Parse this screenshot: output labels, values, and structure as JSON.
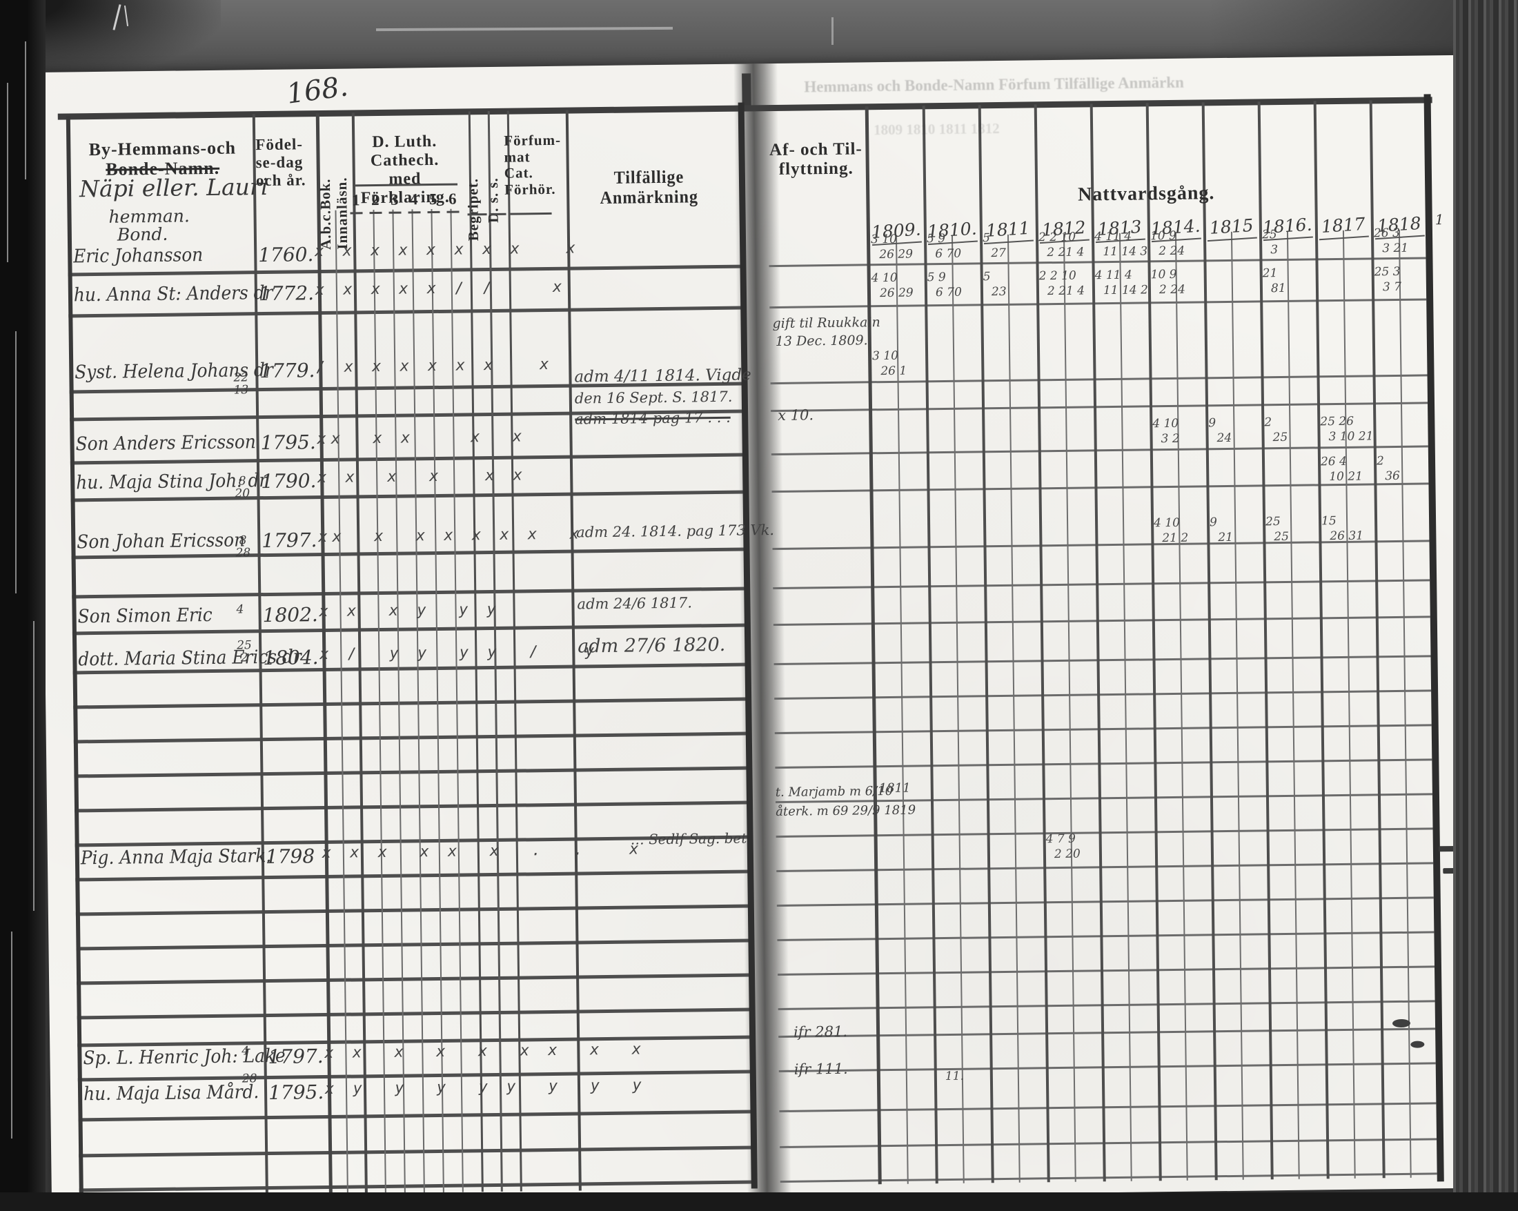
{
  "page_number": "168.",
  "headers": {
    "name_l1": "By-Hemmans-och",
    "name_l2": "Bonde-Namn.",
    "birth_l1": "Födel-",
    "birth_l2": "se-dag",
    "birth_l3": "och år.",
    "abc_l1": "A.b.c.Bok.",
    "abc_l2": "Innanläsn.",
    "cathech_l1": "D. Luth. Cathech.",
    "cathech_l2": "med Förklaring.",
    "cathech_cols": [
      "1",
      "2",
      "3",
      "4",
      "5",
      "6"
    ],
    "begriper": "Begripet.",
    "dss": "D. s. s.",
    "forsummat_l1": "Förfum-",
    "forsummat_l2": "mat Cat.",
    "forsummat_l3": "Förhör.",
    "anmarkningar": "Tilfällige Anmärkning",
    "flytt_l1": "Af- och Til-",
    "flytt_l2": "flyttning.",
    "nattvard": "Nattvardsgång.",
    "years": [
      "1809.",
      "1810.",
      "1811",
      "1812",
      "1813",
      "1814.",
      "1815",
      "1816.",
      "1817",
      "1818"
    ],
    "extra_col": "1"
  },
  "farm": {
    "line1": "Näpi eller. Lauri",
    "line2": "hemman.",
    "line3": "Bond."
  },
  "rows": [
    {
      "name": "Eric Johansson",
      "day_top": "",
      "day_bot": "",
      "year": "1760.",
      "marks": "x x x x x x x x   x"
    },
    {
      "name": "hu. Anna St: Anders dr",
      "day_top": "",
      "day_bot": "",
      "year": "1772.",
      "marks": "x x x x x / /    x"
    },
    {
      "name": "Syst. Helena Johans dr",
      "day_top": "22",
      "day_bot": "13",
      "year": "1779.",
      "marks": "/ x x x x x x   x"
    },
    {
      "name": "Son Anders Ericsson",
      "day_top": "",
      "day_bot": "",
      "year": "1795.",
      "marks": "xx  x x    x  x"
    },
    {
      "name": "hu. Maja Stina Joh: dr",
      "day_top": "8",
      "day_bot": "20",
      "year": "1790.",
      "marks": "x x  x  x   x x"
    },
    {
      "name": "Son Johan Ericsson",
      "day_top": "8",
      "day_bot": "28",
      "year": "1797.",
      "marks": "xx  x  x x x x x  x"
    },
    {
      "name": "Son Simon Eric",
      "day_top": "4",
      "day_bot": "",
      "year": "1802.",
      "marks": "x x  x y  y y"
    },
    {
      "name": "dott. Maria Stina Erics dr",
      "day_top": "25",
      "day_bot": "2",
      "year": "1804.",
      "marks": "x /  y y  y y  /   y"
    },
    {
      "name": "Pig. Anna Maja Stark.",
      "day_top": "",
      "day_bot": "",
      "year": "1798",
      "marks": "x x x  x x  x  .  .   x"
    },
    {
      "name": "Sp. L. Henric Joh: Lake",
      "day_top": "4",
      "day_bot": "",
      "year": "1797.",
      "marks": "x x  x  x  x  x x  x  x"
    },
    {
      "name": "hu. Maja Lisa Mård.",
      "day_top": "28",
      "day_bot": "",
      "year": "1795.",
      "marks": "x y  y  y  y y  y  y  y"
    }
  ],
  "remarks": {
    "anders1": "adm 4/11 1814.  Vigde",
    "anders2": "den 16 Sept. S. 1817.",
    "anders3": "adm 1814 pag 17 . . .",
    "johan": "adm 24. 1814. pag 173 Vk.",
    "simon": "adm 24/6 1817.",
    "maria": "adm 27/6 1820.",
    "stark": "… Sedlf Sag. bet"
  },
  "flytt": {
    "helena1": "gift til Ruukkain",
    "helena2": "13 Dec. 1809.",
    "anders": "x 10.",
    "stark1": "t. Marjamb m 6/10",
    "stark2": "återk. m 69 29/9 1819",
    "stark_year": "1811",
    "henric": "ifr 281.",
    "mard": "ifr 111."
  },
  "comm": {
    "eric": [
      {
        "t": "3 10",
        "b": "26 29"
      },
      {
        "t": "5 9",
        "b": "6 70"
      },
      {
        "t": "5",
        "b": "27"
      },
      {
        "t": "2 2 10",
        "b": "2 21 4"
      },
      {
        "t": "4 11 4",
        "b": "11 14 3"
      },
      {
        "t": "10 9",
        "b": "2 24"
      },
      {
        "t": "25",
        "b": "3"
      },
      {
        "t": "26 3",
        "b": "3 21"
      }
    ],
    "anna": [
      {
        "t": "4 10",
        "b": "26 29"
      },
      {
        "t": "5 9",
        "b": "6 70"
      },
      {
        "t": "5",
        "b": "23"
      },
      {
        "t": "2 2 10",
        "b": "2 21 4"
      },
      {
        "t": "4 11 4",
        "b": "11 14 2"
      },
      {
        "t": "10 9",
        "b": "2 24"
      },
      {
        "t": "21",
        "b": "81"
      },
      {
        "t": "25 3",
        "b": "3 7"
      }
    ],
    "helena": [
      {
        "t": "3 10",
        "b": "26 1"
      }
    ],
    "anders": [
      {
        "t": "4 10",
        "b": "3 2"
      },
      {
        "t": "9",
        "b": "24"
      },
      {
        "t": "2",
        "b": "25"
      },
      {
        "t": "25 26",
        "b": "3 10 21"
      }
    ],
    "majastina": [
      {
        "t": "26 4",
        "b": "10 21"
      },
      {
        "t": "2",
        "b": "36"
      }
    ],
    "johan": [
      {
        "t": "4 10",
        "b": "21 2"
      },
      {
        "t": "9",
        "b": "21"
      },
      {
        "t": "25",
        "b": "25"
      },
      {
        "t": "15",
        "b": "26 31"
      }
    ],
    "stark": [
      {
        "t": "4 7 9",
        "b": "2 20"
      }
    ],
    "mard": [
      {
        "t": "",
        "b": "11."
      }
    ]
  },
  "ghosts": {
    "g1": "Hemmans och Bonde-Namn      Förfum    Tilfällige Anmärkn",
    "g2": "1809   1810   1811   1812"
  }
}
